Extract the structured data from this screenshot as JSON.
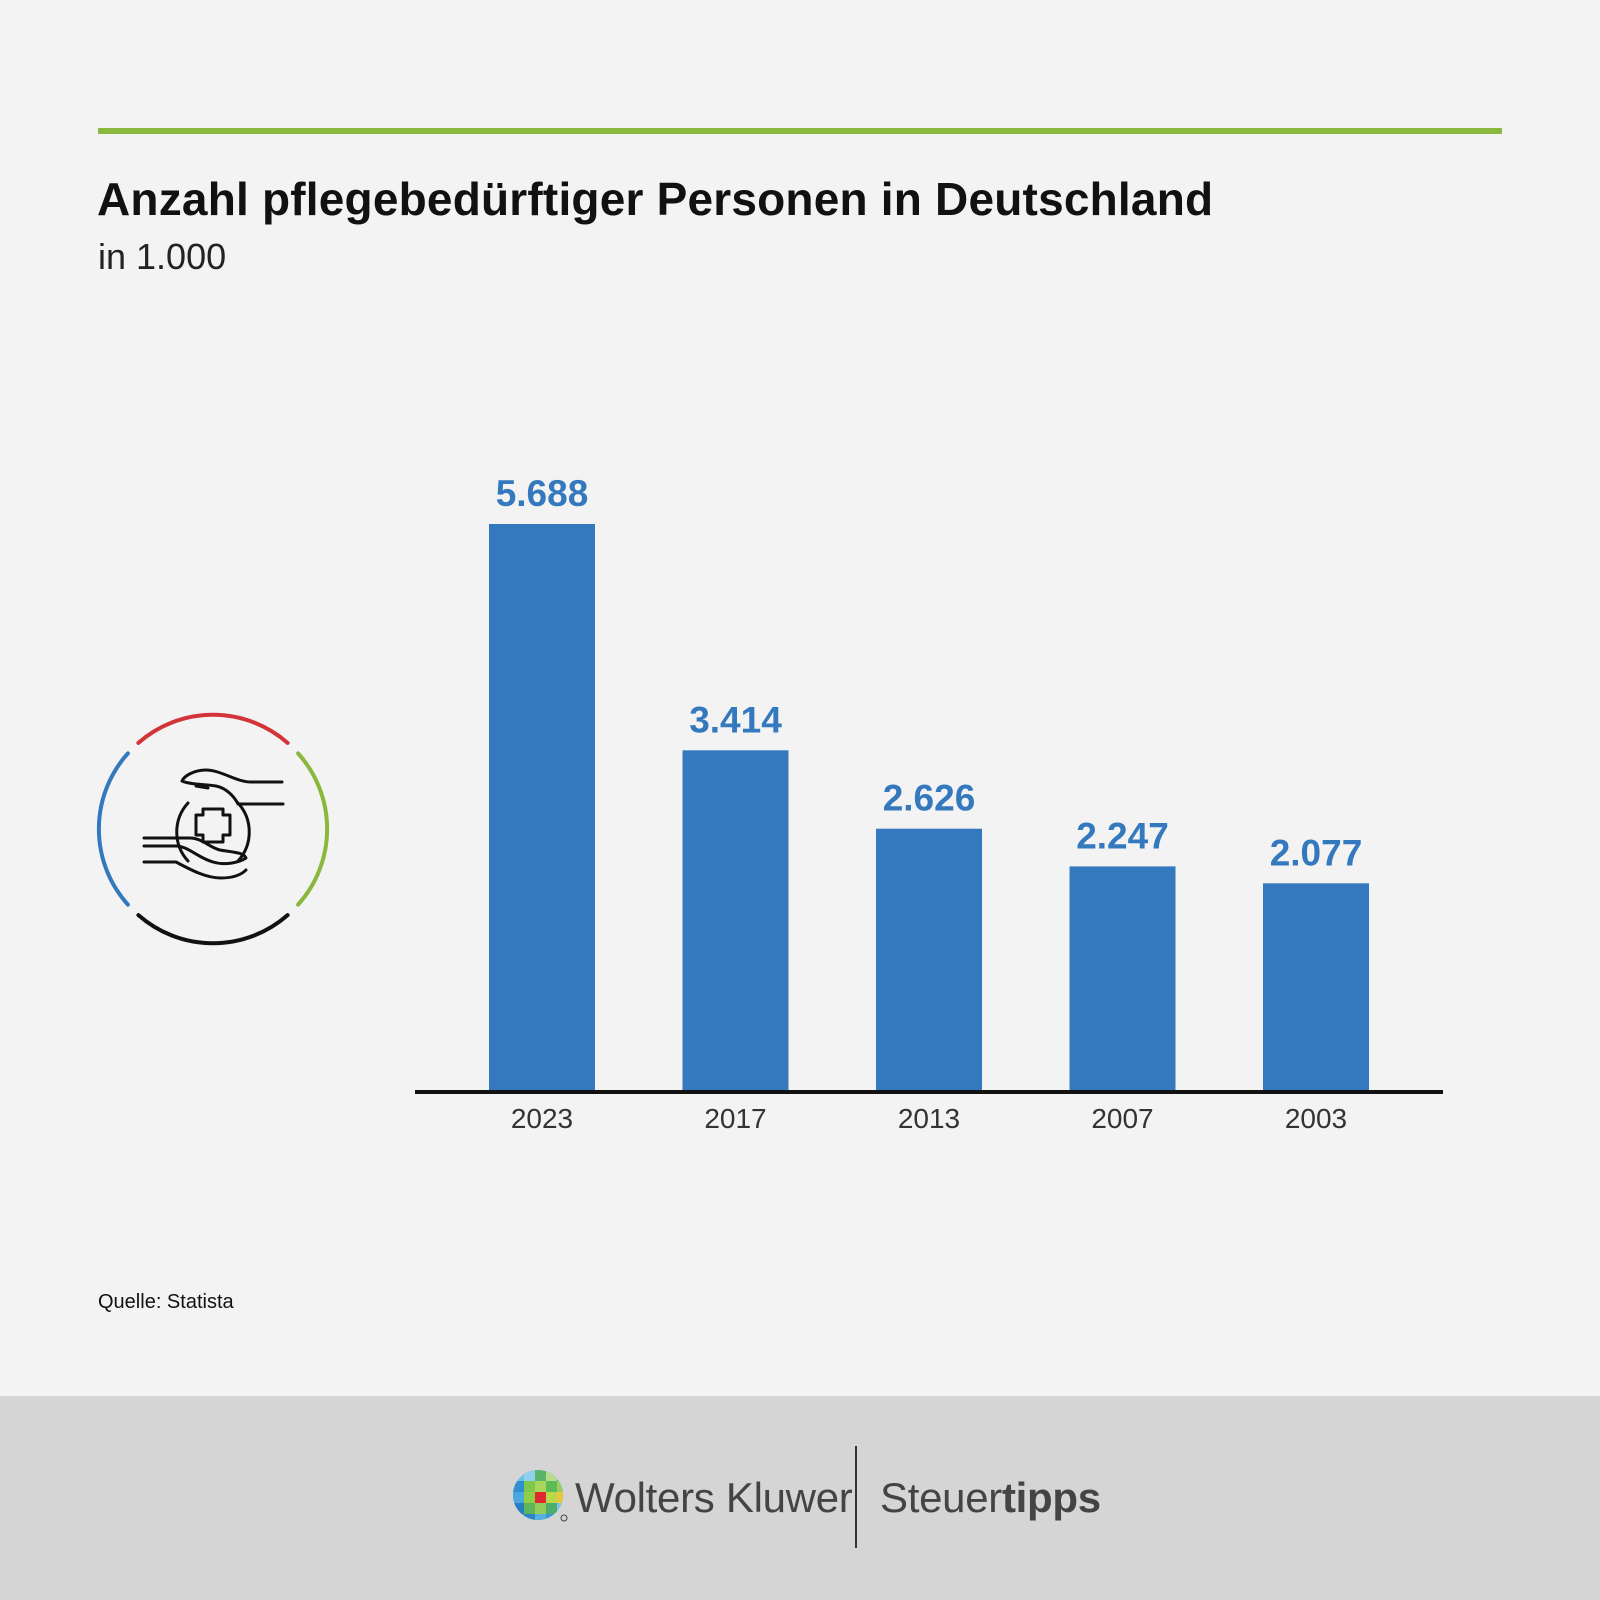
{
  "header": {
    "title": "Anzahl pflegebedürftiger Personen in Deutschland",
    "subtitle": "in 1.000"
  },
  "colors": {
    "accent_rule": "#8ab83c",
    "bar": "#3479be",
    "bar_label": "#3479be",
    "axis": "#111111",
    "icon_ring_red": "#d3343a",
    "icon_ring_green": "#8ab83c",
    "icon_ring_blue": "#3479be",
    "icon_ring_black": "#111111"
  },
  "icon": "hands-protecting-medical-cross-icon",
  "chart_data": {
    "type": "bar",
    "title": "Anzahl pflegebedürftiger Personen in Deutschland",
    "subtitle": "in 1.000",
    "categories": [
      "2023",
      "2017",
      "2013",
      "2007",
      "2003"
    ],
    "values": [
      5688,
      3414,
      2626,
      2247,
      2077
    ],
    "value_labels": [
      "5.688",
      "3.414",
      "2.626",
      "2.247",
      "2.077"
    ],
    "xlabel": "",
    "ylabel": "",
    "ylim": [
      0,
      5688
    ],
    "grid": false,
    "legend": "none"
  },
  "source": "Quelle: Statista",
  "footer": {
    "brand_name": "Wolters Kluwer",
    "product_light": "Steuer",
    "product_bold": "tipps"
  }
}
